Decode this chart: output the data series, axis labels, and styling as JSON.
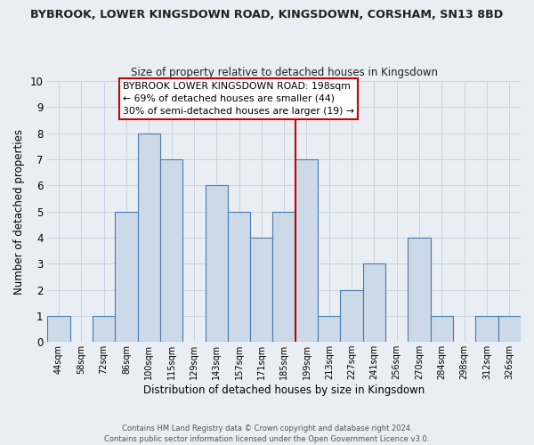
{
  "title": "BYBROOK, LOWER KINGSDOWN ROAD, KINGSDOWN, CORSHAM, SN13 8BD",
  "subtitle": "Size of property relative to detached houses in Kingsdown",
  "xlabel": "Distribution of detached houses by size in Kingsdown",
  "ylabel": "Number of detached properties",
  "bin_labels": [
    "44sqm",
    "58sqm",
    "72sqm",
    "86sqm",
    "100sqm",
    "115sqm",
    "129sqm",
    "143sqm",
    "157sqm",
    "171sqm",
    "185sqm",
    "199sqm",
    "213sqm",
    "227sqm",
    "241sqm",
    "256sqm",
    "270sqm",
    "284sqm",
    "298sqm",
    "312sqm",
    "326sqm"
  ],
  "bar_values": [
    1,
    0,
    1,
    5,
    8,
    7,
    0,
    6,
    5,
    4,
    5,
    7,
    1,
    2,
    3,
    0,
    4,
    1,
    0,
    1,
    1
  ],
  "bar_color": "#ccd9e8",
  "bar_edge_color": "#4a7aaa",
  "grid_color": "#c8d4de",
  "vline_color": "#cc0000",
  "vline_x_idx": 11,
  "annotation_text": "BYBROOK LOWER KINGSDOWN ROAD: 198sqm\n← 69% of detached houses are smaller (44)\n30% of semi-detached houses are larger (19) →",
  "annotation_box_facecolor": "#ffffff",
  "annotation_box_edgecolor": "#cc0000",
  "ylim": [
    0,
    10
  ],
  "yticks": [
    0,
    1,
    2,
    3,
    4,
    5,
    6,
    7,
    8,
    9,
    10
  ],
  "footer_text": "Contains HM Land Registry data © Crown copyright and database right 2024.\nContains public sector information licensed under the Open Government Licence v3.0.",
  "background_color": "#e8eef4"
}
